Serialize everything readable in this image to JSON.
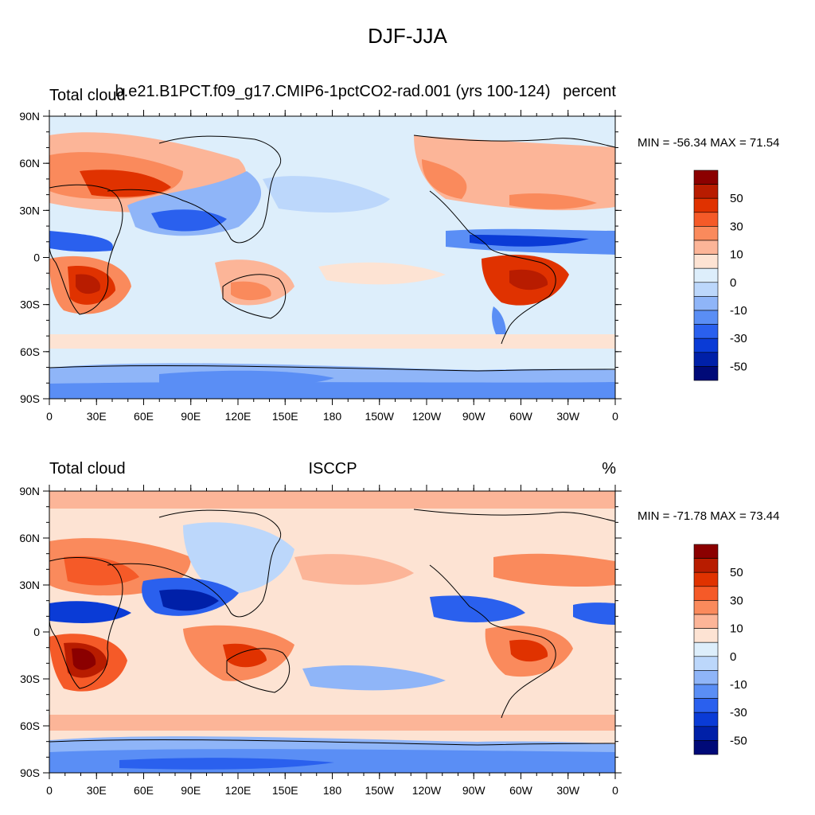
{
  "main_title": "DJF-JJA",
  "lat_labels": [
    "90N",
    "60N",
    "30N",
    "0",
    "30S",
    "60S",
    "90S"
  ],
  "lon_labels": [
    "0",
    "30E",
    "60E",
    "90E",
    "120E",
    "150E",
    "180",
    "150W",
    "120W",
    "90W",
    "60W",
    "30W",
    "0"
  ],
  "colorbar_labels": [
    "50",
    "30",
    "10",
    "0",
    "-10",
    "-30",
    "-50"
  ],
  "colorbar_colors": [
    "#8b0000",
    "#b81c00",
    "#e03200",
    "#f55a28",
    "#fa8a5c",
    "#fcb598",
    "#fde3d3",
    "#ddeefb",
    "#bcd7fb",
    "#8fb5f8",
    "#5a8ef5",
    "#2a60ee",
    "#0a3bd6",
    "#0020a8",
    "#000a78"
  ],
  "panels": [
    {
      "left_label": "Total cloud",
      "center_label": "b.e21.B1PCT.f09_g17.CMIP6-1pctCO2-rad.001 (yrs 100-124)",
      "right_label": "percent",
      "min_max": "MIN = -56.34  MAX =  71.54"
    },
    {
      "left_label": "Total cloud",
      "center_label": "ISCCP",
      "right_label": "%",
      "min_max": "MIN = -71.78  MAX =  73.44"
    }
  ]
}
